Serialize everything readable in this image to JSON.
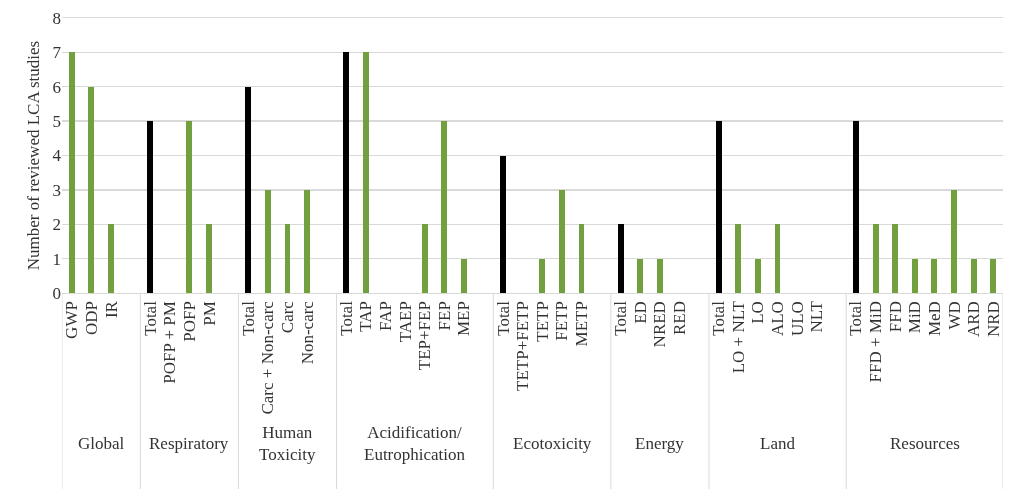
{
  "chart_data": {
    "type": "bar",
    "ylabel": "Number of reviewed LCA studies",
    "categories": [
      "GWP",
      "ODP",
      "IR",
      null,
      "Total",
      "POFP + PM",
      "POFP",
      "PM",
      null,
      "Total",
      "Carc + Non-carc",
      "Carc",
      "Non-carc",
      null,
      "Total",
      "TAP",
      "FAP",
      "TAEP",
      "TEP+FEP",
      "FEP",
      "MEP",
      null,
      "Total",
      "TETP+FETP",
      "TETP",
      "FETP",
      "METP",
      null,
      "Total",
      "ED",
      "NRED",
      "RED",
      null,
      "Total",
      "LO + NLT",
      "LO",
      "ALO",
      "ULO",
      "NLT",
      null,
      "Total",
      "FFD + MiD",
      "FFD",
      "MiD",
      "MeD",
      "WD",
      "ARD",
      "NRD"
    ],
    "values": [
      7,
      6,
      2,
      null,
      5,
      0,
      5,
      2,
      null,
      6,
      3,
      2,
      3,
      null,
      7,
      7,
      0,
      0,
      2,
      5,
      1,
      null,
      4,
      0,
      1,
      3,
      2,
      null,
      2,
      1,
      1,
      0,
      null,
      5,
      2,
      1,
      2,
      0,
      0,
      null,
      5,
      2,
      2,
      1,
      1,
      3,
      1,
      1
    ],
    "colors": [
      "#72a03e",
      "#72a03e",
      "#72a03e",
      "#72a03e",
      "#000000",
      "#72a03e",
      "#72a03e",
      "#72a03e",
      "#72a03e",
      "#000000",
      "#72a03e",
      "#72a03e",
      "#72a03e",
      "#72a03e",
      "#000000",
      "#72a03e",
      "#72a03e",
      "#72a03e",
      "#72a03e",
      "#72a03e",
      "#72a03e",
      "#72a03e",
      "#000000",
      "#72a03e",
      "#72a03e",
      "#72a03e",
      "#72a03e",
      "#72a03e",
      "#000000",
      "#72a03e",
      "#72a03e",
      "#72a03e",
      "#72a03e",
      "#000000",
      "#72a03e",
      "#72a03e",
      "#72a03e",
      "#72a03e",
      "#72a03e",
      "#72a03e",
      "#000000",
      "#72a03e",
      "#72a03e",
      "#72a03e",
      "#72a03e",
      "#72a03e",
      "#72a03e",
      "#72a03e"
    ],
    "annotations": [
      "Global",
      "Respiratory",
      "Human Toxicity",
      "Acidification/ Eutrophication",
      "Ecotoxicity",
      "Energy",
      "Land",
      "Resources"
    ],
    "ylim": [
      0,
      8
    ],
    "yticks": [
      0,
      1,
      2,
      3,
      4,
      5,
      6,
      7,
      8
    ],
    "grid": "y"
  }
}
